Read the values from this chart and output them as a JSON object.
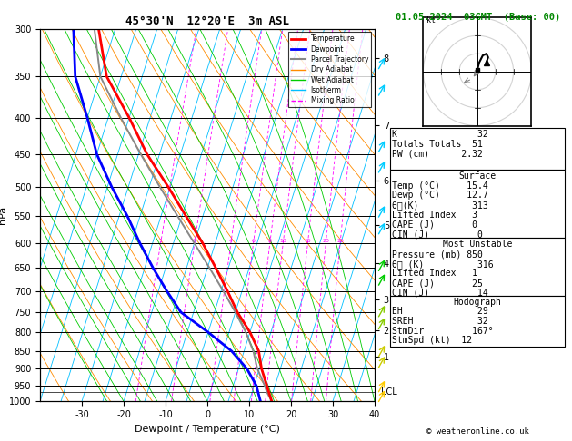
{
  "title_left": "45°30'N  12°20'E  3m ASL",
  "title_right": "01.05.2024  03GMT  (Base: 00)",
  "xlabel": "Dewpoint / Temperature (°C)",
  "ylabel_left": "hPa",
  "pressure_ticks": [
    300,
    350,
    400,
    450,
    500,
    550,
    600,
    650,
    700,
    750,
    800,
    850,
    900,
    950,
    1000
  ],
  "temp_ticks": [
    -30,
    -20,
    -10,
    0,
    10,
    20,
    30,
    40
  ],
  "km_ticks": [
    1,
    2,
    3,
    4,
    5,
    6,
    7,
    8
  ],
  "km_pressures": [
    865,
    795,
    720,
    640,
    565,
    490,
    410,
    330
  ],
  "lcl_pressure": 970,
  "background_color": "#ffffff",
  "isotherm_color": "#00bfff",
  "dry_adiabat_color": "#ff8c00",
  "wet_adiabat_color": "#00cc00",
  "mixing_ratio_color": "#ff00ff",
  "temp_color": "#ff0000",
  "dewpoint_color": "#0000ff",
  "parcel_color": "#888888",
  "stats": {
    "K": 32,
    "Totals_Totals": 51,
    "PW_cm": "2.32",
    "Surface_Temp": "15.4",
    "Surface_Dewp": "12.7",
    "Surface_theta_e": 313,
    "Surface_LI": 3,
    "Surface_CAPE": 0,
    "Surface_CIN": 0,
    "MU_Pressure": 850,
    "MU_theta_e": 316,
    "MU_LI": 1,
    "MU_CAPE": 25,
    "MU_CIN": 14,
    "EH": 29,
    "SREH": 32,
    "StmDir": "167°",
    "StmSpd": 12
  },
  "temperature_profile": {
    "pressure": [
      1000,
      950,
      900,
      850,
      800,
      750,
      700,
      650,
      600,
      550,
      500,
      450,
      400,
      350,
      300
    ],
    "temp": [
      15.4,
      13.0,
      10.5,
      8.5,
      5.0,
      0.5,
      -3.5,
      -8.0,
      -13.0,
      -19.0,
      -25.5,
      -33.0,
      -40.0,
      -48.5,
      -54.0
    ]
  },
  "dewpoint_profile": {
    "pressure": [
      1000,
      950,
      900,
      850,
      800,
      750,
      700,
      650,
      600,
      550,
      500,
      450,
      400,
      350,
      300
    ],
    "temp": [
      12.7,
      10.5,
      7.0,
      2.0,
      -5.0,
      -13.0,
      -18.0,
      -23.0,
      -28.0,
      -33.0,
      -39.0,
      -45.0,
      -50.0,
      -56.0,
      -60.0
    ]
  },
  "parcel_profile": {
    "pressure": [
      1000,
      970,
      950,
      900,
      850,
      800,
      750,
      700,
      650,
      600,
      550,
      500,
      450,
      400,
      350,
      300
    ],
    "temp": [
      15.4,
      13.5,
      12.5,
      9.5,
      7.2,
      4.0,
      0.0,
      -4.5,
      -9.5,
      -15.0,
      -21.0,
      -27.5,
      -34.5,
      -42.0,
      -50.0,
      -55.0
    ]
  },
  "wind_barb_pressures": [
    300,
    400,
    500,
    600,
    700,
    850,
    925,
    1000
  ],
  "wind_barb_colors": [
    "#00ccff",
    "#00ccff",
    "#00ccff",
    "#00ccff",
    "#00dd00",
    "#88dd00",
    "#ffff00",
    "#ffff00"
  ]
}
